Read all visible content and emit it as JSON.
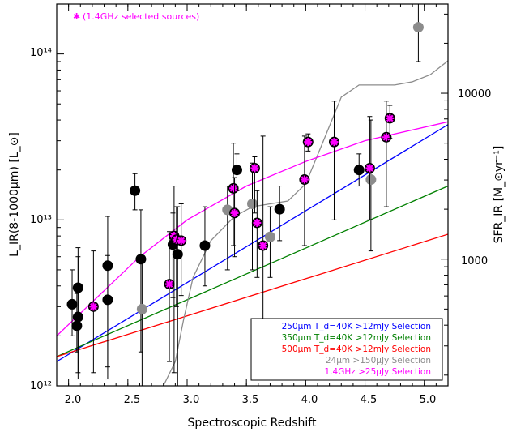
{
  "chart_data": {
    "type": "scatter",
    "xlabel": "Spectroscopic Redshift",
    "ylabel_left": "L_IR(8-1000μm) [L_⊙]",
    "ylabel_right": "SFR_IR [M_⊙yr⁻¹]",
    "xlim": [
      1.9,
      5.2
    ],
    "ylim": [
      1000000000000.0,
      200000000000000.0
    ],
    "yscale": "log",
    "x_ticks": [
      "2.0",
      "2.5",
      "3.0",
      "3.5",
      "4.0",
      "4.5",
      "5.0"
    ],
    "y_ticks_left": [
      "10¹²",
      "10¹³",
      "10¹⁴"
    ],
    "y_ticks_right": [
      "1000",
      "10000"
    ],
    "annotation": {
      "marker": "✱",
      "text": "(1.4GHz selected sources)",
      "color": "#ff00ff"
    },
    "series": [
      {
        "marker": "black-filled-circle",
        "color": "#000000",
        "points": [
          {
            "z": 2.03,
            "L": 3100000000000.0,
            "lo": 2000000000000.0,
            "hi": 5000000000000.0
          },
          {
            "z": 2.07,
            "L": 2300000000000.0,
            "lo": 1600000000000.0,
            "hi": 3600000000000.0
          },
          {
            "z": 2.08,
            "L": 2600000000000.0,
            "lo": 1100000000000.0,
            "hi": 6000000000000.0
          },
          {
            "z": 2.08,
            "L": 3900000000000.0,
            "lo": 1200000000000.0,
            "hi": 6800000000000.0
          },
          {
            "z": 2.33,
            "L": 3300000000000.0,
            "lo": 1300000000000.0,
            "hi": 6100000000000.0
          },
          {
            "z": 2.33,
            "L": 5300000000000.0,
            "lo": 1100000000000.0,
            "hi": 10500000000000.0
          },
          {
            "z": 2.56,
            "L": 15000000000000.0,
            "lo": 11500000000000.0,
            "hi": 19000000000000.0
          },
          {
            "z": 2.61,
            "L": 5800000000000.0,
            "lo": 1600000000000.0,
            "hi": 11500000000000.0
          },
          {
            "z": 2.88,
            "L": 7100000000000.0,
            "lo": 3400000000000.0,
            "hi": 11000000000000.0
          },
          {
            "z": 2.92,
            "L": 6200000000000.0,
            "lo": 1000000000000.0,
            "hi": 12000000000000.0
          },
          {
            "z": 3.15,
            "L": 7000000000000.0,
            "lo": 4000000000000.0,
            "hi": 12000000000000.0
          },
          {
            "z": 3.42,
            "L": 20000000000000.0,
            "lo": 15000000000000.0,
            "hi": 25000000000000.0
          },
          {
            "z": 3.78,
            "L": 11600000000000.0,
            "lo": 7500000000000.0,
            "hi": 16000000000000.0
          },
          {
            "z": 4.45,
            "L": 20000000000000.0,
            "lo": 16000000000000.0,
            "hi": 25000000000000.0
          }
        ]
      },
      {
        "marker": "grey-filled-circle",
        "color": "#8c8c8c",
        "points": [
          {
            "z": 2.62,
            "L": 2900000000000.0,
            "lo": 1000000000000.0,
            "hi": 6000000000000.0
          },
          {
            "z": 3.34,
            "L": 11500000000000.0,
            "lo": 5000000000000.0,
            "hi": 16000000000000.0
          },
          {
            "z": 3.55,
            "L": 12500000000000.0,
            "lo": 5000000000000.0,
            "hi": 22000000000000.0
          },
          {
            "z": 3.7,
            "L": 7900000000000.0,
            "lo": 4500000000000.0,
            "hi": 12000000000000.0
          },
          {
            "z": 4.55,
            "L": 17500000000000.0,
            "lo": 6500000000000.0,
            "hi": 40000000000000.0
          },
          {
            "z": 4.95,
            "L": 145000000000000.0,
            "lo": 90000000000000.0,
            "hi": 200000000000000.0
          }
        ]
      },
      {
        "marker": "magenta-star-on-circle",
        "color": "#ff00ff",
        "points": [
          {
            "z": 2.21,
            "L": 3000000000000.0,
            "lo": 1200000000000.0,
            "hi": 6500000000000.0
          },
          {
            "z": 2.85,
            "L": 4100000000000.0,
            "lo": 1400000000000.0,
            "hi": 8500000000000.0
          },
          {
            "z": 2.89,
            "L": 8000000000000.0,
            "lo": 1200000000000.0,
            "hi": 16000000000000.0
          },
          {
            "z": 2.91,
            "L": 7600000000000.0,
            "lo": 3000000000000.0,
            "hi": 12000000000000.0
          },
          {
            "z": 2.95,
            "L": 7500000000000.0,
            "lo": 3500000000000.0,
            "hi": 12500000000000.0
          },
          {
            "z": 3.39,
            "L": 15500000000000.0,
            "lo": 7000000000000.0,
            "hi": 29000000000000.0
          },
          {
            "z": 3.4,
            "L": 11000000000000.0,
            "lo": 6000000000000.0,
            "hi": 18000000000000.0
          },
          {
            "z": 3.57,
            "L": 20500000000000.0,
            "lo": 11000000000000.0,
            "hi": 24000000000000.0
          },
          {
            "z": 3.59,
            "L": 9600000000000.0,
            "lo": 4500000000000.0,
            "hi": 15000000000000.0
          },
          {
            "z": 3.64,
            "L": 7000000000000.0,
            "lo": 2000000000000.0,
            "hi": 32000000000000.0
          },
          {
            "z": 3.99,
            "L": 17500000000000.0,
            "lo": 7000000000000.0,
            "hi": 32000000000000.0
          },
          {
            "z": 4.02,
            "L": 29500000000000.0,
            "lo": 26000000000000.0,
            "hi": 33000000000000.0
          },
          {
            "z": 4.24,
            "L": 29500000000000.0,
            "lo": 10000000000000.0,
            "hi": 52000000000000.0
          },
          {
            "z": 4.54,
            "L": 20500000000000.0,
            "lo": 10000000000000.0,
            "hi": 42000000000000.0
          },
          {
            "z": 4.68,
            "L": 31500000000000.0,
            "lo": 12000000000000.0,
            "hi": 52000000000000.0
          },
          {
            "z": 4.71,
            "L": 41000000000000.0,
            "lo": 31000000000000.0,
            "hi": 49000000000000.0
          }
        ]
      }
    ],
    "curves": [
      {
        "color": "#0000ff",
        "points": [
          [
            1.9,
            1400000000000.0
          ],
          [
            5.2,
            37500000000000.0
          ]
        ]
      },
      {
        "color": "#008000",
        "points": [
          [
            1.9,
            1500000000000.0
          ],
          [
            5.2,
            16000000000000.0
          ]
        ]
      },
      {
        "color": "#ff0000",
        "points": [
          [
            1.9,
            1500000000000.0
          ],
          [
            5.2,
            8200000000000.0
          ]
        ]
      },
      {
        "color": "#8c8c8c",
        "points": [
          [
            2.8,
            1000000000000.0
          ],
          [
            2.9,
            1400000000000.0
          ],
          [
            2.97,
            2500000000000.0
          ],
          [
            3.05,
            4500000000000.0
          ],
          [
            3.2,
            7500000000000.0
          ],
          [
            3.4,
            10500000000000.0
          ],
          [
            3.55,
            12000000000000.0
          ],
          [
            3.7,
            12500000000000.0
          ],
          [
            3.85,
            13000000000000.0
          ],
          [
            4.0,
            16500000000000.0
          ],
          [
            4.15,
            30000000000000.0
          ],
          [
            4.3,
            55000000000000.0
          ],
          [
            4.45,
            65000000000000.0
          ],
          [
            4.6,
            65000000000000.0
          ],
          [
            4.75,
            65000000000000.0
          ],
          [
            4.9,
            68000000000000.0
          ],
          [
            5.05,
            75000000000000.0
          ],
          [
            5.2,
            91000000000000.0
          ]
        ]
      },
      {
        "color": "#ff00ff",
        "points": [
          [
            1.9,
            2000000000000.0
          ],
          [
            2.2,
            3200000000000.0
          ],
          [
            2.6,
            6000000000000.0
          ],
          [
            3.0,
            10000000000000.0
          ],
          [
            3.5,
            16000000000000.0
          ],
          [
            4.0,
            22500000000000.0
          ],
          [
            4.5,
            30000000000000.0
          ],
          [
            5.2,
            39000000000000.0
          ]
        ]
      }
    ],
    "legend": {
      "placement": "bottom-right",
      "entries": [
        {
          "label": "250μm T_d=40K >12mJy Selection",
          "color": "#0000ff"
        },
        {
          "label": "350μm T_d=40K >12mJy Selection",
          "color": "#008000"
        },
        {
          "label": "500μm T_d=40K >12mJy Selection",
          "color": "#ff0000"
        },
        {
          "label": "24μm >150μJy Selection",
          "color": "#8c8c8c"
        },
        {
          "label": "1.4GHz >25μJy Selection",
          "color": "#ff00ff"
        }
      ]
    }
  }
}
